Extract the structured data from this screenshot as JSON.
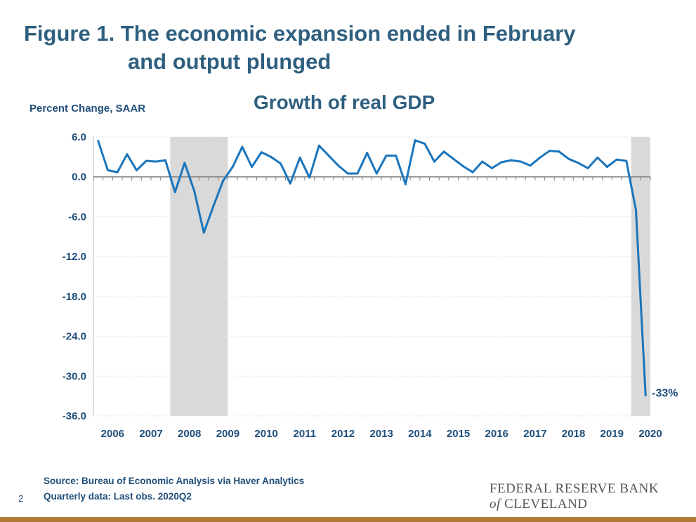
{
  "figure": {
    "title_line1": "Figure 1. The economic expansion ended in February",
    "title_line2": "and output plunged"
  },
  "footer": {
    "source": "Source: Bureau of Economic Analysis via Haver Analytics",
    "note": "Quarterly data: Last obs. 2020Q2",
    "page_number": "2",
    "logo_line1": "FEDERAL RESERVE BANK",
    "logo_of": "of",
    "logo_line2": "CLEVELAND"
  },
  "colors": {
    "line": "#1a75bc",
    "recession": "#d9d9d9",
    "title": "#2f5f7f",
    "axis_text": "#1f4e79",
    "rule": "#b07a36"
  },
  "chart_data": {
    "type": "line",
    "title": "Growth of real GDP",
    "ylabel": "Percent Change, SAAR",
    "xlabel": "",
    "ylim": [
      -36,
      6
    ],
    "yticks": [
      6,
      0,
      -6,
      -12,
      -18,
      -24,
      -30,
      -36
    ],
    "ytick_labels": [
      "6.0",
      "0.0",
      "-6.0",
      "-12.0",
      "-18.0",
      "-24.0",
      "-30.0",
      "-36.0"
    ],
    "xtick_labels": [
      "2006",
      "2007",
      "2008",
      "2009",
      "2010",
      "2011",
      "2012",
      "2013",
      "2014",
      "2015",
      "2016",
      "2017",
      "2018",
      "2019",
      "2020"
    ],
    "grid": true,
    "legend": "none",
    "recessions": [
      {
        "start": "2008Q1",
        "end": "2009Q2"
      },
      {
        "start": "2020Q1",
        "end": "2020Q2"
      }
    ],
    "series": [
      {
        "x": [
          "2006Q1",
          "2006Q2",
          "2006Q3",
          "2006Q4",
          "2007Q1",
          "2007Q2",
          "2007Q3",
          "2007Q4",
          "2008Q1",
          "2008Q2",
          "2008Q3",
          "2008Q4",
          "2009Q1",
          "2009Q2",
          "2009Q3",
          "2009Q4",
          "2010Q1",
          "2010Q2",
          "2010Q3",
          "2010Q4",
          "2011Q1",
          "2011Q2",
          "2011Q3",
          "2011Q4",
          "2012Q1",
          "2012Q2",
          "2012Q3",
          "2012Q4",
          "2013Q1",
          "2013Q2",
          "2013Q3",
          "2013Q4",
          "2014Q1",
          "2014Q2",
          "2014Q3",
          "2014Q4",
          "2015Q1",
          "2015Q2",
          "2015Q3",
          "2015Q4",
          "2016Q1",
          "2016Q2",
          "2016Q3",
          "2016Q4",
          "2017Q1",
          "2017Q2",
          "2017Q3",
          "2017Q4",
          "2018Q1",
          "2018Q2",
          "2018Q3",
          "2018Q4",
          "2019Q1",
          "2019Q2",
          "2019Q3",
          "2019Q4",
          "2020Q1",
          "2020Q2"
        ],
        "values": [
          5.4,
          1.0,
          0.7,
          3.4,
          1.0,
          2.4,
          2.3,
          2.5,
          -2.3,
          2.1,
          -2.1,
          -8.4,
          -4.4,
          -0.6,
          1.5,
          4.5,
          1.5,
          3.7,
          3.0,
          2.0,
          -1.0,
          2.9,
          -0.1,
          4.7,
          3.2,
          1.7,
          0.5,
          0.5,
          3.6,
          0.5,
          3.2,
          3.2,
          -1.1,
          5.5,
          5.0,
          2.3,
          3.8,
          2.7,
          1.6,
          0.7,
          2.3,
          1.3,
          2.2,
          2.5,
          2.3,
          1.7,
          2.9,
          3.9,
          3.8,
          2.7,
          2.1,
          1.3,
          2.9,
          1.5,
          2.6,
          2.4,
          -5.0,
          -32.9
        ]
      }
    ],
    "annotations": [
      {
        "text": "-33%",
        "x": "2020Q2",
        "y": -32.9
      }
    ]
  }
}
